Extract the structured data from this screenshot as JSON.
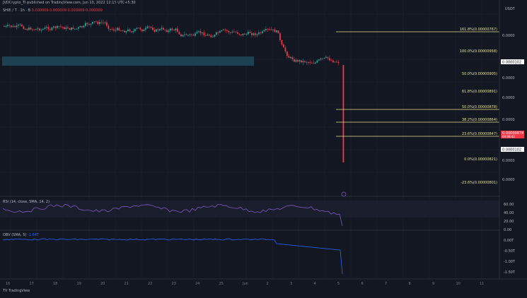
{
  "header": {
    "published_text": "JVDCrypto_TI published on TradingView.com, Jun 10, 2022 12:15 UTC+5:30",
    "symbol_line": "SHIB / T · 1h · B",
    "symbol_values": "0.000009 0.000009 0.000009 0.000009",
    "currency": "USDT"
  },
  "price_axis": {
    "labels": [
      "0.0000",
      "0.0000",
      "0.0000",
      "0.0000",
      "0.0000",
      "0.0000",
      "0.0000"
    ],
    "current_price_tag": "0.00000874",
    "current_price_sub": "00:08:42",
    "tag2": "0.0000102"
  },
  "fib_levels": [
    {
      "label": "161.8%(0.00000767)"
    },
    {
      "label": "100.0%(0.00000958)"
    },
    {
      "label": "50.0%(0.00000905)"
    },
    {
      "label": "61.8%(0.00000891)"
    },
    {
      "label": "50.0%(0.00000878)"
    },
    {
      "label": "38.2%(0.00000864)"
    },
    {
      "label": "23.6%(0.00000847)"
    },
    {
      "label": "0.0%(0.00000821)"
    },
    {
      "label": "-23.6%(0.00000801)"
    }
  ],
  "indicators": {
    "rsi_label": "RSI (14, close, SMA, 14, 2)",
    "rsi_axis": [
      "60.00",
      "40.00",
      "20.00",
      "0.00"
    ],
    "obv_label": "OBV (SMA, 5)",
    "obv_value": "-1.64T",
    "obv_axis": [
      "0.00T",
      "-0.50T",
      "-1.00T",
      "-1.50T"
    ]
  },
  "x_axis": [
    "16",
    "17",
    "18",
    "19",
    "20",
    "21",
    "22",
    "23",
    "24",
    "25",
    "Jun",
    "2",
    "3",
    "4",
    "5",
    "6",
    "7",
    "8",
    "9",
    "10",
    "11"
  ],
  "footer": "TV  TradingView",
  "colors": {
    "background": "#131722",
    "up": "#26a69a",
    "down": "#f23645",
    "fib": "#e8e28a",
    "zone": "#1e4a5a",
    "rsi": "#7e57c2",
    "obv": "#2962ff"
  }
}
